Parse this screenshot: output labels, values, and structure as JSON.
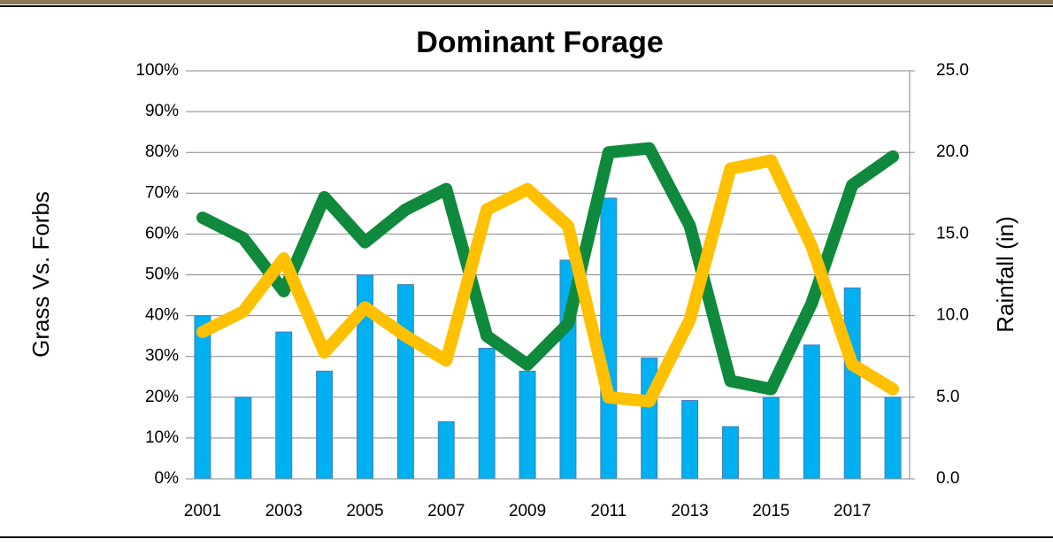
{
  "chart_data": {
    "type": "bar_line",
    "title": "Dominant Forage",
    "y_label": "Grass Vs. Forbs",
    "y2_label": "Rainfall (in)",
    "categories": [
      "2001",
      null,
      "2003",
      null,
      "2005",
      null,
      "2007",
      null,
      "2009",
      null,
      "2011",
      null,
      "2013",
      null,
      "2015",
      null,
      "2017",
      null
    ],
    "series": [
      {
        "type": "bar",
        "axis": "y2",
        "color": "#00b0f0",
        "values": [
          10.0,
          5.0,
          9.0,
          6.6,
          12.5,
          11.9,
          3.5,
          8.0,
          6.6,
          13.4,
          17.2,
          7.4,
          4.8,
          3.2,
          5.0,
          8.2,
          11.7,
          5.0
        ]
      },
      {
        "type": "line",
        "color": "#0f8a3c",
        "values": [
          64,
          59,
          46,
          69,
          58,
          66,
          71,
          35,
          28,
          38,
          80,
          81,
          62,
          24,
          22,
          43,
          72,
          79
        ]
      },
      {
        "type": "line",
        "color": "#ffc000",
        "values": [
          36,
          41,
          54,
          31,
          42,
          35,
          29,
          66,
          71,
          62,
          20,
          19,
          39,
          76,
          78,
          57,
          28,
          22
        ]
      }
    ],
    "ylim": [
      0,
      100
    ],
    "yticks": [
      {
        "value": 0,
        "label": "0%"
      },
      {
        "value": 10,
        "label": "10%"
      },
      {
        "value": 20,
        "label": "20%"
      },
      {
        "value": 30,
        "label": "30%"
      },
      {
        "value": 40,
        "label": "40%"
      },
      {
        "value": 50,
        "label": "50%"
      },
      {
        "value": 60,
        "label": "60%"
      },
      {
        "value": 70,
        "label": "70%"
      },
      {
        "value": 80,
        "label": "80%"
      },
      {
        "value": 90,
        "label": "90%"
      },
      {
        "value": 100,
        "label": "100%"
      }
    ],
    "y2lim": [
      0,
      25
    ],
    "y2ticks": [
      {
        "value": 0,
        "label": "0.0"
      },
      {
        "value": 5,
        "label": "5.0"
      },
      {
        "value": 10,
        "label": "10.0"
      },
      {
        "value": 15,
        "label": "15.0"
      },
      {
        "value": 20,
        "label": "20.0"
      },
      {
        "value": 25,
        "label": "25.0"
      }
    ],
    "grid": true
  }
}
